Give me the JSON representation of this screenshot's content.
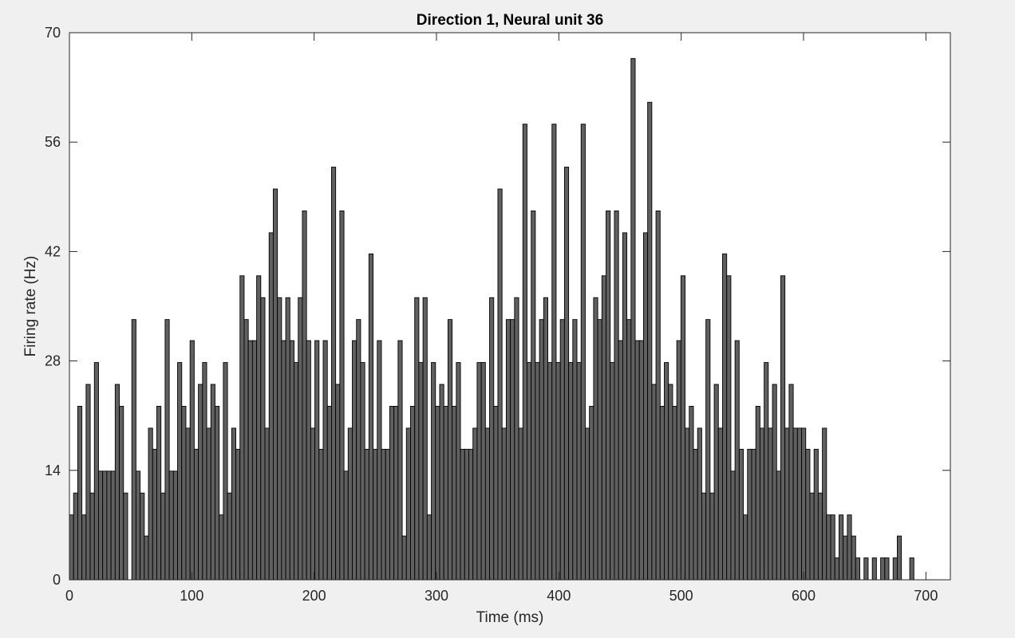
{
  "chart_data": {
    "type": "bar",
    "title": "Direction 1, Neural unit 36",
    "xlabel": "Time (ms)",
    "ylabel": "Firing rate (Hz)",
    "xlim": [
      0,
      720
    ],
    "ylim": [
      0,
      70
    ],
    "x_ticks": [
      0,
      100,
      200,
      300,
      400,
      500,
      600,
      700
    ],
    "y_ticks": [
      0,
      14,
      28,
      42,
      56,
      70
    ],
    "bin_width_ms": 3.4,
    "bar_color": "#606060",
    "edge_color": "#000000",
    "axes_background": "#ffffff",
    "grid": false,
    "values": [
      8.3,
      11.1,
      22.2,
      8.3,
      25,
      11.1,
      27.8,
      13.9,
      13.9,
      13.9,
      13.9,
      25,
      22.2,
      11.1,
      0,
      33.3,
      13.9,
      11.1,
      5.6,
      19.4,
      16.7,
      22.2,
      11.1,
      33.3,
      13.9,
      13.9,
      27.8,
      22.2,
      19.4,
      30.6,
      16.7,
      25,
      27.8,
      19.4,
      25,
      22.2,
      8.3,
      27.8,
      11.1,
      19.4,
      16.7,
      38.9,
      33.3,
      30.6,
      30.6,
      38.9,
      36.1,
      19.4,
      44.4,
      50,
      36.1,
      30.6,
      36.1,
      30.6,
      27.8,
      36.1,
      47.2,
      30.6,
      19.4,
      30.6,
      16.7,
      30.6,
      22.2,
      52.8,
      25,
      47.2,
      13.9,
      19.4,
      30.6,
      33.3,
      27.8,
      16.7,
      41.7,
      16.7,
      30.6,
      16.7,
      16.7,
      22.2,
      22.2,
      30.6,
      5.6,
      19.4,
      22.2,
      36.1,
      27.8,
      36.1,
      8.3,
      27.8,
      22.2,
      25,
      22.2,
      33.3,
      22.2,
      27.8,
      16.7,
      16.7,
      16.7,
      19.4,
      27.8,
      27.8,
      19.4,
      36.1,
      22.2,
      50,
      19.4,
      33.3,
      33.3,
      36.1,
      19.4,
      58.3,
      27.8,
      47.2,
      27.8,
      33.3,
      36.1,
      27.8,
      58.3,
      27.8,
      33.3,
      52.8,
      27.8,
      33.3,
      27.8,
      58.3,
      19.4,
      22.2,
      36.1,
      33.3,
      38.9,
      47.2,
      27.8,
      47.2,
      30.6,
      44.4,
      33.3,
      66.7,
      30.6,
      30.6,
      44.4,
      61.1,
      25,
      47.2,
      22.2,
      27.8,
      25,
      22.2,
      30.6,
      38.9,
      19.4,
      22.2,
      16.7,
      19.4,
      11.1,
      33.3,
      11.1,
      25,
      19.4,
      41.7,
      38.9,
      13.9,
      30.6,
      16.7,
      8.3,
      16.7,
      16.7,
      22.2,
      19.4,
      27.8,
      19.4,
      25,
      13.9,
      38.9,
      19.4,
      25,
      19.4,
      19.4,
      19.4,
      16.7,
      11.1,
      16.7,
      11.1,
      19.4,
      8.3,
      8.3,
      2.8,
      8.3,
      5.6,
      8.3,
      5.6,
      2.8,
      0,
      2.8,
      0,
      2.8,
      0,
      2.8,
      2.8,
      0,
      2.8,
      5.6,
      0,
      0,
      2.8
    ]
  }
}
